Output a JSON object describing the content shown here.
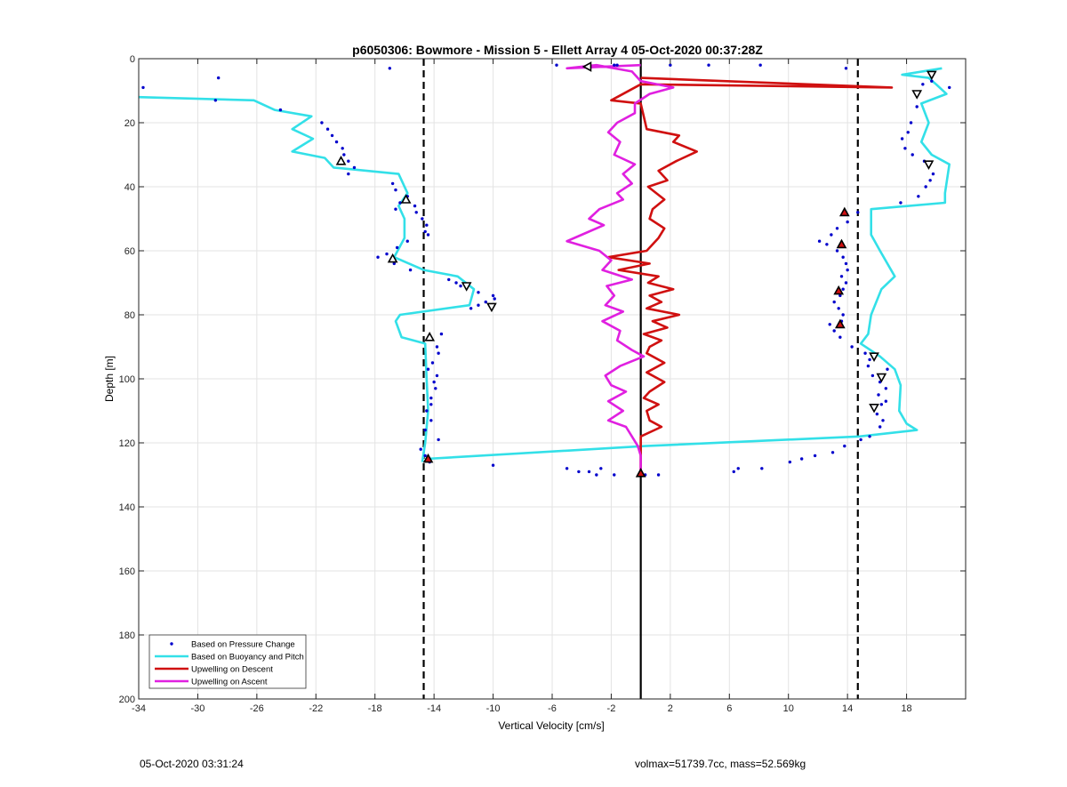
{
  "chart_data": {
    "type": "line",
    "title": "p6050306: Bowmore - Mission 5 - Ellett Array 4 05-Oct-2020 00:37:28Z",
    "xlabel": "Vertical Velocity [cm/s]",
    "ylabel": "Depth [m]",
    "xlim": [
      -34,
      22
    ],
    "ylim": [
      0,
      200
    ],
    "y_reversed": true,
    "grid": true,
    "xticks": [
      -34,
      -30,
      -26,
      -22,
      -18,
      -14,
      -10,
      -6,
      -2,
      2,
      6,
      10,
      14,
      18
    ],
    "yticks": [
      0,
      20,
      40,
      60,
      80,
      100,
      120,
      140,
      160,
      180,
      200
    ],
    "legend_position": "bottom-left",
    "legend": [
      {
        "label": "Based on Pressure Change",
        "style": "dots",
        "color": "#0000cc"
      },
      {
        "label": "Based on Buoyancy and Pitch",
        "style": "line",
        "color": "#33e0e8"
      },
      {
        "label": "Upwelling on Descent",
        "style": "line",
        "color": "#d01010"
      },
      {
        "label": "Upwelling on Ascent",
        "style": "line",
        "color": "#e020e0"
      }
    ],
    "reference_lines": [
      {
        "x": -14.7,
        "style": "dashed",
        "color": "#000000"
      },
      {
        "x": 14.7,
        "style": "dashed",
        "color": "#000000"
      },
      {
        "x": 0,
        "style": "solid",
        "color": "#000000"
      }
    ],
    "series": [
      {
        "key": "buoyancy_descent",
        "color": "#33e0e8",
        "points": [
          [
            -34,
            12
          ],
          [
            -26.2,
            13
          ],
          [
            -24.8,
            16
          ],
          [
            -22.3,
            18
          ],
          [
            -23.6,
            22
          ],
          [
            -22.2,
            25
          ],
          [
            -23.6,
            29
          ],
          [
            -21.4,
            31
          ],
          [
            -20.8,
            34
          ],
          [
            -16.4,
            36
          ],
          [
            -15.8,
            42
          ],
          [
            -16.4,
            46
          ],
          [
            -16,
            50
          ],
          [
            -16,
            56
          ],
          [
            -16.7,
            62
          ],
          [
            -14.7,
            66
          ],
          [
            -12.4,
            68
          ],
          [
            -11.3,
            72
          ],
          [
            -11.6,
            77
          ],
          [
            -16.3,
            80
          ],
          [
            -16.6,
            82
          ],
          [
            -16.2,
            87
          ],
          [
            -14.6,
            89
          ],
          [
            -14.5,
            100
          ],
          [
            -14.4,
            110
          ],
          [
            -14.6,
            120
          ],
          [
            -14.8,
            126
          ]
        ]
      },
      {
        "key": "buoyancy_ascent",
        "color": "#33e0e8",
        "points": [
          [
            20.4,
            3
          ],
          [
            17.7,
            5
          ],
          [
            19.5,
            6
          ],
          [
            20,
            8
          ],
          [
            20.7,
            11
          ],
          [
            19,
            14
          ],
          [
            19.5,
            20
          ],
          [
            19,
            26
          ],
          [
            19.7,
            30
          ],
          [
            20.9,
            33
          ],
          [
            20.6,
            42
          ],
          [
            20.6,
            45
          ],
          [
            15.6,
            47
          ],
          [
            15.6,
            55
          ],
          [
            16.2,
            60
          ],
          [
            17.2,
            68
          ],
          [
            16.3,
            72
          ],
          [
            15.6,
            80
          ],
          [
            15.4,
            86
          ],
          [
            14.9,
            89
          ],
          [
            16.2,
            93
          ],
          [
            17.2,
            97
          ],
          [
            17.6,
            102
          ],
          [
            17.5,
            110
          ],
          [
            18,
            114
          ],
          [
            18.7,
            116
          ],
          [
            14.8,
            118
          ],
          [
            0.3,
            121
          ],
          [
            -14.5,
            125
          ]
        ]
      },
      {
        "key": "upwelling_descent",
        "color": "#d01010",
        "points": [
          [
            0,
            6
          ],
          [
            17,
            9
          ],
          [
            0,
            8
          ],
          [
            -2,
            13
          ],
          [
            0,
            14
          ],
          [
            0.2,
            18
          ],
          [
            0.4,
            22
          ],
          [
            2.6,
            24
          ],
          [
            2.2,
            26
          ],
          [
            3.8,
            29
          ],
          [
            2.4,
            32
          ],
          [
            1.2,
            35
          ],
          [
            1.8,
            38
          ],
          [
            0.5,
            40
          ],
          [
            1.6,
            44
          ],
          [
            0.8,
            47
          ],
          [
            0.6,
            50
          ],
          [
            1.6,
            53
          ],
          [
            1.2,
            56
          ],
          [
            0.4,
            60
          ],
          [
            -2.2,
            62
          ],
          [
            0.6,
            64
          ],
          [
            -1.5,
            66
          ],
          [
            1.2,
            68
          ],
          [
            0.5,
            70
          ],
          [
            2.2,
            72
          ],
          [
            0.6,
            74
          ],
          [
            1.4,
            76
          ],
          [
            0.4,
            78
          ],
          [
            2.6,
            80
          ],
          [
            0.8,
            82
          ],
          [
            1.8,
            84
          ],
          [
            0.2,
            86
          ],
          [
            1.4,
            88
          ],
          [
            0.6,
            90
          ],
          [
            0.4,
            92
          ],
          [
            1.6,
            95
          ],
          [
            0.4,
            98
          ],
          [
            1.6,
            101
          ],
          [
            0.6,
            104
          ],
          [
            0.2,
            106
          ],
          [
            1.2,
            108
          ],
          [
            0.4,
            110
          ],
          [
            0.6,
            113
          ],
          [
            1.4,
            115
          ],
          [
            0,
            118
          ],
          [
            0,
            122
          ],
          [
            0,
            126
          ],
          [
            0,
            130
          ]
        ]
      },
      {
        "key": "upwelling_ascent",
        "color": "#e020e0",
        "points": [
          [
            0,
            2
          ],
          [
            -5,
            3
          ],
          [
            -3,
            2
          ],
          [
            -0.6,
            4
          ],
          [
            0,
            7
          ],
          [
            2.2,
            9
          ],
          [
            0.6,
            11
          ],
          [
            -0.4,
            14
          ],
          [
            -0.4,
            17
          ],
          [
            -1.6,
            20
          ],
          [
            -2.2,
            23
          ],
          [
            -1.4,
            26
          ],
          [
            -1.8,
            30
          ],
          [
            -0.4,
            33
          ],
          [
            -1.2,
            36
          ],
          [
            -0.6,
            39
          ],
          [
            -1.6,
            42
          ],
          [
            -1.2,
            44
          ],
          [
            -2.8,
            47
          ],
          [
            -3.5,
            50
          ],
          [
            -2.5,
            52
          ],
          [
            -4,
            55
          ],
          [
            -5,
            57
          ],
          [
            -2.8,
            60
          ],
          [
            -2,
            63
          ],
          [
            -2.6,
            66
          ],
          [
            -0.6,
            69
          ],
          [
            -2.3,
            71
          ],
          [
            -1.8,
            74
          ],
          [
            -2.4,
            77
          ],
          [
            -1.2,
            79
          ],
          [
            -2.6,
            82
          ],
          [
            -1.4,
            85
          ],
          [
            -1.6,
            88
          ],
          [
            -0.6,
            91
          ],
          [
            0.2,
            93
          ],
          [
            -1.4,
            96
          ],
          [
            -2.4,
            99
          ],
          [
            -2,
            102
          ],
          [
            -1,
            104
          ],
          [
            -2.2,
            107
          ],
          [
            -1.2,
            110
          ],
          [
            -2.2,
            113
          ],
          [
            -1,
            115
          ],
          [
            -0.6,
            118
          ],
          [
            -0.2,
            121
          ],
          [
            0,
            124
          ],
          [
            0,
            127
          ],
          [
            0,
            129
          ]
        ]
      }
    ],
    "scatter": {
      "key": "pressure_change",
      "color": "#0000cc",
      "points": [
        [
          -33.7,
          9
        ],
        [
          -28.6,
          6
        ],
        [
          -28.8,
          13
        ],
        [
          -24.4,
          16
        ],
        [
          -21.6,
          20
        ],
        [
          -21.2,
          22
        ],
        [
          -20.9,
          24
        ],
        [
          -20.6,
          26
        ],
        [
          -20.2,
          28
        ],
        [
          -20.1,
          30
        ],
        [
          -19.8,
          32
        ],
        [
          -19.4,
          34
        ],
        [
          -19.8,
          36
        ],
        [
          -17,
          3
        ],
        [
          -16.8,
          39
        ],
        [
          -16.6,
          41
        ],
        [
          -15.8,
          43
        ],
        [
          -16.3,
          45
        ],
        [
          -15.3,
          46
        ],
        [
          -16.6,
          47
        ],
        [
          -15.2,
          48
        ],
        [
          -14.8,
          50
        ],
        [
          -14.5,
          52
        ],
        [
          -14.6,
          54
        ],
        [
          -14.4,
          55
        ],
        [
          -15.8,
          57
        ],
        [
          -16.5,
          59
        ],
        [
          -17.2,
          61
        ],
        [
          -17.8,
          62
        ],
        [
          -16.7,
          64
        ],
        [
          -15.6,
          66
        ],
        [
          -13,
          69
        ],
        [
          -12.5,
          70
        ],
        [
          -11,
          73
        ],
        [
          -10,
          74
        ],
        [
          -9.9,
          75
        ],
        [
          -10.5,
          76
        ],
        [
          -11,
          77
        ],
        [
          -11.5,
          78
        ],
        [
          -12.2,
          71
        ],
        [
          -13.5,
          86
        ],
        [
          -13.8,
          90
        ],
        [
          -13.7,
          92
        ],
        [
          -14.1,
          95
        ],
        [
          -14.4,
          97
        ],
        [
          -13.8,
          99
        ],
        [
          -14,
          101
        ],
        [
          -13.9,
          103
        ],
        [
          -14.2,
          106
        ],
        [
          -14.2,
          108
        ],
        [
          -14.5,
          110
        ],
        [
          -14.2,
          113
        ],
        [
          -14.6,
          116
        ],
        [
          -13.7,
          119
        ],
        [
          -14.9,
          122
        ],
        [
          -14.6,
          124
        ],
        [
          -14.3,
          126
        ],
        [
          -10,
          127
        ],
        [
          -5,
          128
        ],
        [
          -4.2,
          129
        ],
        [
          -3.5,
          129
        ],
        [
          -3,
          130
        ],
        [
          -2.7,
          128
        ],
        [
          -1.8,
          130
        ],
        [
          0.3,
          130
        ],
        [
          1.2,
          130
        ],
        [
          -1.6,
          2
        ],
        [
          -1.8,
          2
        ],
        [
          2,
          2
        ],
        [
          4.6,
          2
        ],
        [
          8.1,
          2
        ],
        [
          13.9,
          3
        ],
        [
          -5.7,
          2
        ],
        [
          19.1,
          8
        ],
        [
          19.7,
          7
        ],
        [
          20.9,
          9
        ],
        [
          18.7,
          15
        ],
        [
          18.3,
          20
        ],
        [
          18.1,
          23
        ],
        [
          17.7,
          25
        ],
        [
          17.9,
          28
        ],
        [
          18.4,
          30
        ],
        [
          19.2,
          32
        ],
        [
          19.8,
          36
        ],
        [
          19.6,
          38
        ],
        [
          19.3,
          40
        ],
        [
          18.8,
          43
        ],
        [
          17.6,
          45
        ],
        [
          14.7,
          48
        ],
        [
          14,
          51
        ],
        [
          13.3,
          53
        ],
        [
          12.9,
          55
        ],
        [
          12.1,
          57
        ],
        [
          12.6,
          58
        ],
        [
          13.3,
          60
        ],
        [
          13.7,
          62
        ],
        [
          13.9,
          64
        ],
        [
          14,
          66
        ],
        [
          13.6,
          68
        ],
        [
          13.9,
          70
        ],
        [
          13.7,
          72
        ],
        [
          13.5,
          74
        ],
        [
          13.1,
          76
        ],
        [
          13.4,
          78
        ],
        [
          13.7,
          80
        ],
        [
          13.6,
          82
        ],
        [
          12.8,
          83
        ],
        [
          13.1,
          85
        ],
        [
          13.5,
          87
        ],
        [
          14.3,
          90
        ],
        [
          15.2,
          92
        ],
        [
          15.5,
          94
        ],
        [
          15.4,
          96
        ],
        [
          16.7,
          97
        ],
        [
          15.7,
          99
        ],
        [
          16.2,
          101
        ],
        [
          16.6,
          103
        ],
        [
          16.1,
          105
        ],
        [
          16.6,
          107
        ],
        [
          16.3,
          108
        ],
        [
          16,
          111
        ],
        [
          16.4,
          113
        ],
        [
          16.2,
          115
        ],
        [
          15.5,
          118
        ],
        [
          14.9,
          119
        ],
        [
          13.8,
          121
        ],
        [
          13,
          123
        ],
        [
          11.8,
          124
        ],
        [
          10.9,
          125
        ],
        [
          10.1,
          126
        ],
        [
          8.2,
          128
        ],
        [
          6.6,
          128
        ],
        [
          6.3,
          129
        ]
      ]
    },
    "markers": [
      {
        "shape": "triangle-left",
        "x": -3.6,
        "y": 2.5,
        "fill": "#ffffff"
      },
      {
        "shape": "triangle-down",
        "x": 19.7,
        "y": 5,
        "fill": "#ffffff"
      },
      {
        "shape": "triangle-down",
        "x": 18.7,
        "y": 11,
        "fill": "#ffffff"
      },
      {
        "shape": "triangle-up",
        "x": -20.3,
        "y": 32,
        "fill": "#ffffff"
      },
      {
        "shape": "triangle-down",
        "x": 19.5,
        "y": 33,
        "fill": "#ffffff"
      },
      {
        "shape": "triangle-up",
        "x": -15.9,
        "y": 44,
        "fill": "#ffffff"
      },
      {
        "shape": "triangle-up",
        "x": -16.8,
        "y": 62.5,
        "fill": "#ffffff"
      },
      {
        "shape": "triangle-down",
        "x": -11.8,
        "y": 71,
        "fill": "#ffffff"
      },
      {
        "shape": "triangle-down",
        "x": -10.1,
        "y": 77.5,
        "fill": "#ffffff"
      },
      {
        "shape": "triangle-up",
        "x": -14.3,
        "y": 87,
        "fill": "#ffffff"
      },
      {
        "shape": "triangle-down",
        "x": 15.8,
        "y": 93,
        "fill": "#ffffff"
      },
      {
        "shape": "triangle-down",
        "x": 16.3,
        "y": 99.5,
        "fill": "#ffffff"
      },
      {
        "shape": "triangle-down",
        "x": 15.8,
        "y": 109,
        "fill": "#ffffff"
      },
      {
        "shape": "triangle-up",
        "x": 13.8,
        "y": 48,
        "fill": "#d01010"
      },
      {
        "shape": "triangle-up",
        "x": 13.6,
        "y": 58,
        "fill": "#d01010"
      },
      {
        "shape": "triangle-up",
        "x": 13.4,
        "y": 72.5,
        "fill": "#d01010"
      },
      {
        "shape": "triangle-up",
        "x": 13.5,
        "y": 83,
        "fill": "#d01010"
      },
      {
        "shape": "triangle-up",
        "x": -14.4,
        "y": 125,
        "fill": "#d01010"
      },
      {
        "shape": "triangle-up",
        "x": 0,
        "y": 129.5,
        "fill": "#d01010"
      }
    ]
  },
  "footer": {
    "left": "05-Oct-2020 03:31:24",
    "right": "volmax=51739.7cc, mass=52.569kg"
  }
}
